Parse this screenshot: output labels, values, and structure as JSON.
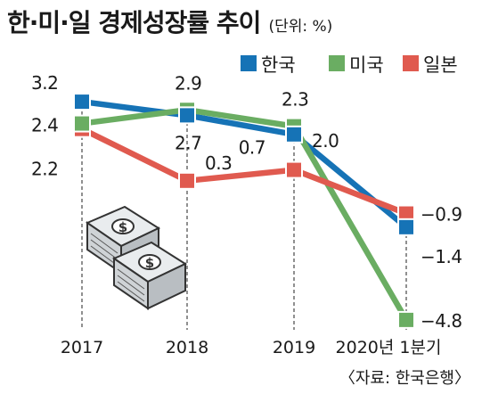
{
  "title": "한·미·일 경제성장률 추이",
  "unit": "(단위: %)",
  "source": "〈자료: 한국은행〉",
  "colors": {
    "korea": "#1673b6",
    "usa": "#6aad62",
    "japan": "#e05a4f",
    "guide": "#555555"
  },
  "icon": "money-bundle-icon",
  "chart_data": {
    "type": "line",
    "categories": [
      "2017",
      "2018",
      "2019",
      "2020년 1분기"
    ],
    "series": [
      {
        "name": "한국",
        "values": [
          3.2,
          2.7,
          2.0,
          -1.4
        ],
        "labels": [
          "3.2",
          "2.7",
          "2.0",
          "−1.4"
        ]
      },
      {
        "name": "미국",
        "values": [
          2.4,
          2.9,
          2.3,
          -4.8
        ],
        "labels": [
          "2.4",
          "2.9",
          "2.3",
          "−4.8"
        ]
      },
      {
        "name": "일본",
        "values": [
          2.2,
          0.3,
          0.7,
          -0.9
        ],
        "labels": [
          "2.2",
          "0.3",
          "0.7",
          "−0.9"
        ]
      }
    ],
    "legend_position": "top-right",
    "grid": false
  }
}
